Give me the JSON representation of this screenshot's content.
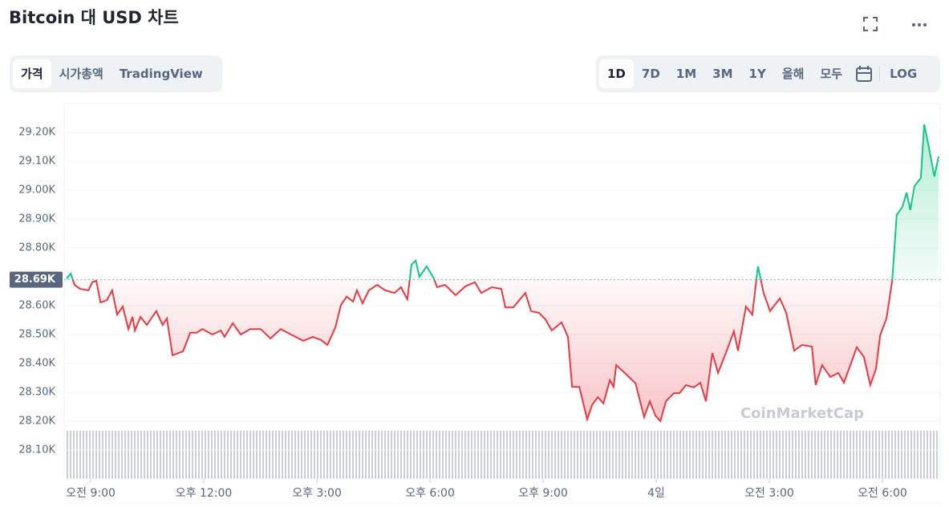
{
  "header": {
    "title": "Bitcoin 대 USD 차트"
  },
  "tabs": [
    "가격",
    "시가총액",
    "TradingView"
  ],
  "ranges": [
    "1D",
    "7D",
    "1M",
    "3M",
    "1Y",
    "올해",
    "모두",
    "LOG"
  ],
  "watermark": "CoinMarketCap",
  "chart_data": {
    "type": "line",
    "up_color": "#16c784",
    "down_color": "#ea3943",
    "grid": true,
    "reference": {
      "value": 28690,
      "label": "28.69K"
    },
    "xlim": [
      8.36,
      31.49
    ],
    "xticks": [
      {
        "value": 9,
        "label": "오전 9:00"
      },
      {
        "value": 12,
        "label": "오후 12:00"
      },
      {
        "value": 15,
        "label": "오후 3:00"
      },
      {
        "value": 18,
        "label": "오후 6:00"
      },
      {
        "value": 21,
        "label": "오후 9:00"
      },
      {
        "value": 24,
        "label": "4일"
      },
      {
        "value": 27,
        "label": "오전 3:00"
      },
      {
        "value": 30,
        "label": "오전 6:00"
      }
    ],
    "ylim": [
      28000,
      29300
    ],
    "yticks": [
      {
        "value": 28100,
        "label": "28.10K"
      },
      {
        "value": 28200,
        "label": "28.20K"
      },
      {
        "value": 28300,
        "label": "28.30K"
      },
      {
        "value": 28400,
        "label": "28.40K"
      },
      {
        "value": 28500,
        "label": "28.50K"
      },
      {
        "value": 28600,
        "label": "28.60K"
      },
      {
        "value": 28800,
        "label": "28.80K"
      },
      {
        "value": 28900,
        "label": "28.90K"
      },
      {
        "value": 29000,
        "label": "29.00K"
      },
      {
        "value": 29100,
        "label": "29.10K"
      },
      {
        "value": 29200,
        "label": "29.20K"
      }
    ],
    "x": [
      8.36,
      8.47,
      8.57,
      8.72,
      8.94,
      9.04,
      9.15,
      9.26,
      9.43,
      9.57,
      9.7,
      9.85,
      10.0,
      10.11,
      10.17,
      10.32,
      10.49,
      10.74,
      10.91,
      11.02,
      11.17,
      11.45,
      11.64,
      11.81,
      11.96,
      12.23,
      12.45,
      12.55,
      12.77,
      12.98,
      13.23,
      13.51,
      13.77,
      14.04,
      14.36,
      14.64,
      14.89,
      15.11,
      15.28,
      15.49,
      15.64,
      15.79,
      15.96,
      16.06,
      16.21,
      16.38,
      16.6,
      16.81,
      17.06,
      17.23,
      17.4,
      17.51,
      17.62,
      17.72,
      17.91,
      18.09,
      18.19,
      18.4,
      18.68,
      18.94,
      19.19,
      19.36,
      19.64,
      19.89,
      20.0,
      20.21,
      20.53,
      20.68,
      20.89,
      21.06,
      21.23,
      21.49,
      21.66,
      21.77,
      21.96,
      22.17,
      22.3,
      22.45,
      22.6,
      22.77,
      22.87,
      22.94,
      23.19,
      23.45,
      23.68,
      23.83,
      23.98,
      24.11,
      24.26,
      24.47,
      24.62,
      24.79,
      25.0,
      25.17,
      25.32,
      25.49,
      25.64,
      25.85,
      26.06,
      26.17,
      26.38,
      26.55,
      26.7,
      26.85,
      27.02,
      27.28,
      27.45,
      27.66,
      27.87,
      28.13,
      28.23,
      28.4,
      28.62,
      28.83,
      28.98,
      29.15,
      29.32,
      29.51,
      29.68,
      29.83,
      29.94,
      30.11,
      30.26,
      30.38,
      30.53,
      30.64,
      30.74,
      30.85,
      31.02,
      31.11,
      31.21,
      31.38,
      31.49
    ],
    "values": [
      28694,
      28711,
      28672,
      28658,
      28653,
      28681,
      28686,
      28611,
      28619,
      28653,
      28569,
      28597,
      28519,
      28561,
      28514,
      28561,
      28533,
      28581,
      28533,
      28556,
      28428,
      28442,
      28506,
      28506,
      28519,
      28500,
      28514,
      28492,
      28539,
      28500,
      28519,
      28519,
      28486,
      28519,
      28497,
      28478,
      28492,
      28481,
      28464,
      28525,
      28603,
      28631,
      28614,
      28653,
      28608,
      28653,
      28672,
      28653,
      28644,
      28664,
      28622,
      28742,
      28756,
      28700,
      28736,
      28697,
      28664,
      28672,
      28636,
      28667,
      28681,
      28644,
      28664,
      28658,
      28594,
      28594,
      28644,
      28581,
      28575,
      28553,
      28514,
      28542,
      28492,
      28319,
      28319,
      28206,
      28256,
      28283,
      28261,
      28342,
      28319,
      28394,
      28364,
      28331,
      28214,
      28269,
      28219,
      28200,
      28269,
      28297,
      28297,
      28325,
      28317,
      28333,
      28269,
      28436,
      28367,
      28436,
      28511,
      28444,
      28597,
      28569,
      28736,
      28644,
      28581,
      28625,
      28575,
      28444,
      28464,
      28458,
      28325,
      28394,
      28353,
      28367,
      28333,
      28394,
      28456,
      28422,
      28325,
      28381,
      28497,
      28556,
      28686,
      28914,
      28942,
      28992,
      28931,
      29014,
      29042,
      29228,
      29164,
      29047,
      29117
    ]
  }
}
